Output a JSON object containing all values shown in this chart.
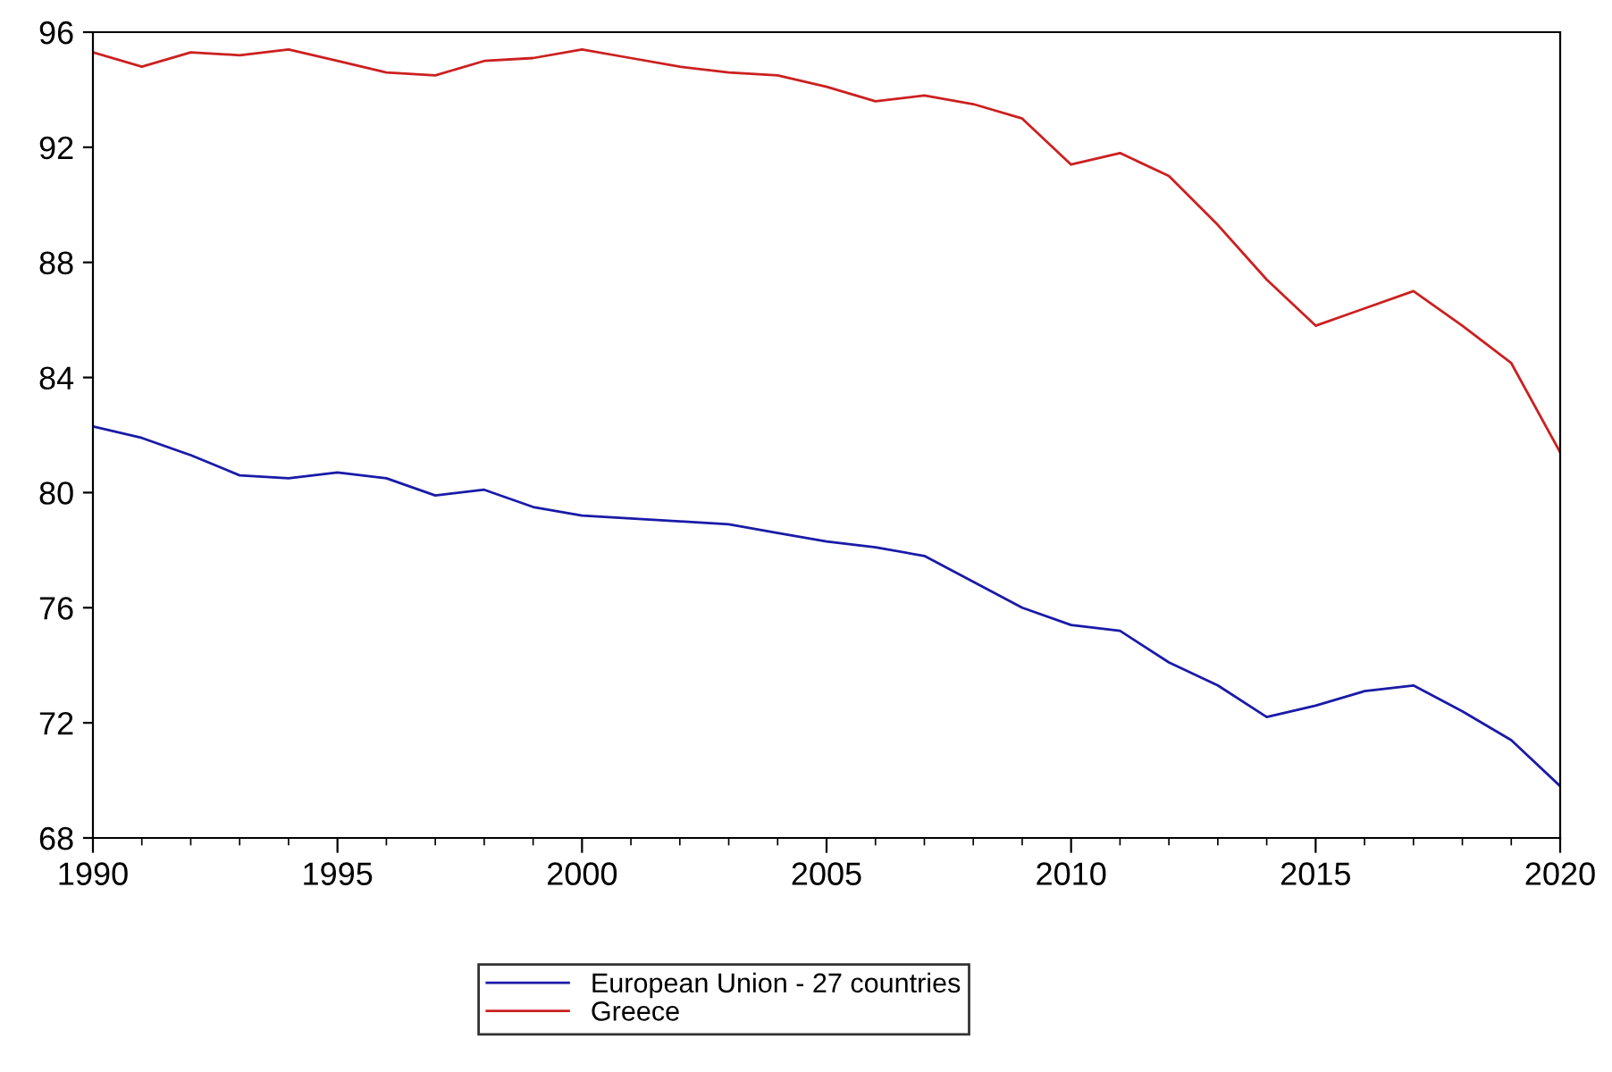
{
  "chart_data": {
    "type": "line",
    "x": [
      1990,
      1991,
      1992,
      1993,
      1994,
      1995,
      1996,
      1997,
      1998,
      1999,
      2000,
      2001,
      2002,
      2003,
      2004,
      2005,
      2006,
      2007,
      2008,
      2009,
      2010,
      2011,
      2012,
      2013,
      2014,
      2015,
      2016,
      2017,
      2018,
      2019,
      2020
    ],
    "series": [
      {
        "name": "European Union - 27 countries",
        "color": "#1a1aa8",
        "values": [
          82.3,
          81.9,
          81.3,
          80.6,
          80.5,
          80.7,
          80.5,
          79.9,
          80.1,
          79.5,
          79.2,
          79.1,
          79.0,
          78.9,
          78.6,
          78.3,
          78.1,
          77.8,
          76.9,
          76.0,
          75.4,
          75.2,
          74.1,
          73.3,
          72.2,
          72.6,
          73.1,
          73.3,
          72.4,
          71.4,
          69.8
        ]
      },
      {
        "name": "Greece",
        "color": "#cc2020",
        "values": [
          95.3,
          94.8,
          95.3,
          95.2,
          95.4,
          95.0,
          94.6,
          94.5,
          95.0,
          95.1,
          95.4,
          95.1,
          94.8,
          94.6,
          94.5,
          94.1,
          93.6,
          93.8,
          93.5,
          93.0,
          91.4,
          91.8,
          91.0,
          89.3,
          87.4,
          85.8,
          86.4,
          87.0,
          85.8,
          84.5,
          81.4
        ]
      }
    ],
    "xlim": [
      1990,
      2020
    ],
    "xticks": [
      1990,
      1995,
      2000,
      2005,
      2010,
      2015,
      2020
    ],
    "ylim": [
      68,
      96
    ],
    "yticks": [
      68,
      72,
      76,
      80,
      84,
      88,
      92,
      96
    ],
    "grid": false,
    "legend": "bottom",
    "marker": "none",
    "line_style": "solid"
  }
}
